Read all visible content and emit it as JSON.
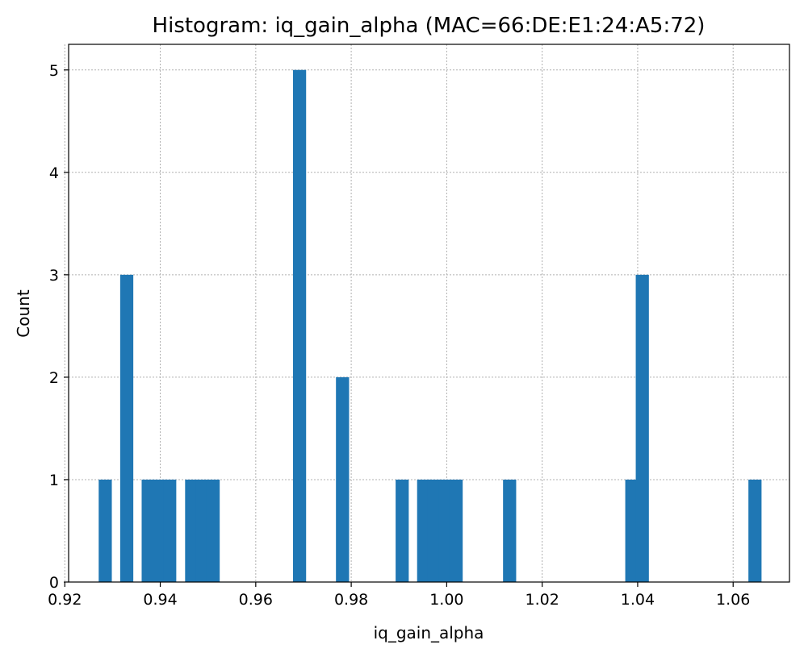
{
  "chart_data": {
    "type": "bar",
    "title": "Histogram: iq_gain_alpha (MAC=66:DE:E1:24:A5:72)",
    "xlabel": "iq_gain_alpha",
    "ylabel": "Count",
    "xlim": [
      0.9208,
      1.0718
    ],
    "ylim": [
      0,
      5.25
    ],
    "xticks": [
      0.92,
      0.94,
      0.96,
      0.98,
      1.0,
      1.02,
      1.04,
      1.06
    ],
    "xtick_labels": [
      "0.92",
      "0.94",
      "0.96",
      "0.98",
      "1.00",
      "1.02",
      "1.04",
      "1.06"
    ],
    "yticks": [
      0,
      1,
      2,
      3,
      4,
      5
    ],
    "ytick_labels": [
      "0",
      "1",
      "2",
      "3",
      "4",
      "5"
    ],
    "grid": true,
    "bar_color": "#1f77b4",
    "bin_width": 0.00275,
    "bins": [
      {
        "x0": 0.9271,
        "count": 1
      },
      {
        "x0": 0.9316,
        "count": 3
      },
      {
        "x0": 0.9361,
        "count": 1
      },
      {
        "x0": 0.9384,
        "count": 1
      },
      {
        "x0": 0.9406,
        "count": 1
      },
      {
        "x0": 0.9452,
        "count": 1
      },
      {
        "x0": 0.9474,
        "count": 1
      },
      {
        "x0": 0.9497,
        "count": 1
      },
      {
        "x0": 0.9678,
        "count": 5
      },
      {
        "x0": 0.9768,
        "count": 2
      },
      {
        "x0": 0.9893,
        "count": 1
      },
      {
        "x0": 0.9938,
        "count": 1
      },
      {
        "x0": 0.996,
        "count": 1
      },
      {
        "x0": 0.9983,
        "count": 1
      },
      {
        "x0": 1.0006,
        "count": 1
      },
      {
        "x0": 1.0118,
        "count": 1
      },
      {
        "x0": 1.0374,
        "count": 1
      },
      {
        "x0": 1.0396,
        "count": 3
      },
      {
        "x0": 1.0632,
        "count": 1
      }
    ]
  }
}
